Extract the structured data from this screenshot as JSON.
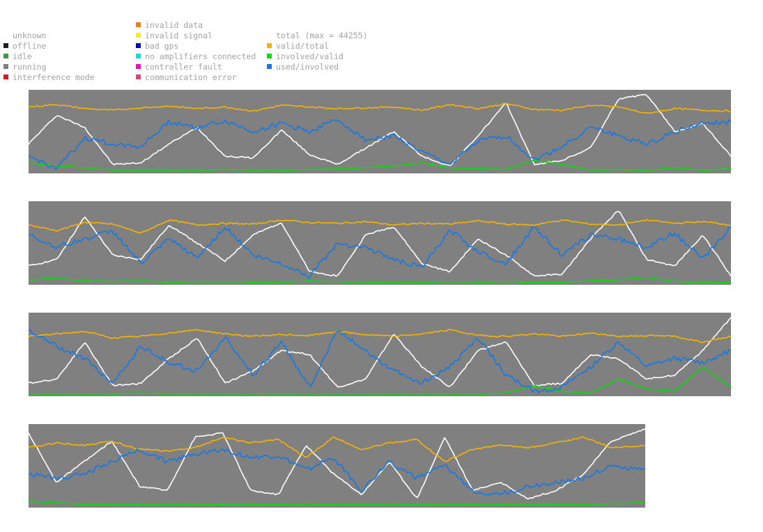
{
  "legend": {
    "states": [
      {
        "label": "unknown",
        "color": "#ffffff"
      },
      {
        "label": "offline",
        "color": "#202020"
      },
      {
        "label": "idle",
        "color": "#3c9b3c"
      },
      {
        "label": "running",
        "color": "#808080"
      },
      {
        "label": "interference mode",
        "color": "#e8101a"
      }
    ],
    "errors": [
      {
        "label": "invalid data",
        "color": "#ff7a00"
      },
      {
        "label": "invalid signal",
        "color": "#ffee00"
      },
      {
        "label": "bad gps",
        "color": "#0000e0"
      },
      {
        "label": "no amplifiers connected",
        "color": "#00e5e5"
      },
      {
        "label": "controller fault",
        "color": "#ff00d0"
      },
      {
        "label": "communication error",
        "color": "#ee3a78"
      }
    ],
    "metrics": [
      {
        "label": "total (max = 44255)",
        "color": "#ffffff"
      },
      {
        "label": "valid/total",
        "color": "#f5b400"
      },
      {
        "label": "involved/valid",
        "color": "#00e000"
      },
      {
        "label": "used/involved",
        "color": "#1478e6"
      }
    ]
  },
  "chart_data": {
    "type": "line",
    "background_state_color": "#808080",
    "ylim": [
      0,
      1
    ],
    "series_order": [
      "total (max = 44255)",
      "valid/total",
      "involved/valid",
      "used/involved"
    ],
    "series_colors": [
      "#ffffff",
      "#f5b400",
      "#00e000",
      "#1478e6"
    ],
    "panels": [
      {
        "x": [
          0,
          0.04,
          0.08,
          0.12,
          0.16,
          0.2,
          0.24,
          0.28,
          0.32,
          0.36,
          0.4,
          0.44,
          0.48,
          0.52,
          0.56,
          0.6,
          0.64,
          0.68,
          0.72,
          0.76,
          0.8,
          0.84,
          0.88,
          0.92,
          0.96,
          1.0
        ],
        "series": [
          {
            "name": "total (max = 44255)",
            "values": [
              0.35,
              0.7,
              0.55,
              0.1,
              0.12,
              0.35,
              0.55,
              0.2,
              0.18,
              0.52,
              0.22,
              0.1,
              0.3,
              0.5,
              0.2,
              0.08,
              0.45,
              0.85,
              0.1,
              0.15,
              0.3,
              0.9,
              0.95,
              0.5,
              0.6,
              0.2
            ]
          },
          {
            "name": "valid/total",
            "values": [
              0.8,
              0.83,
              0.78,
              0.76,
              0.79,
              0.81,
              0.78,
              0.8,
              0.75,
              0.82,
              0.8,
              0.78,
              0.79,
              0.8,
              0.76,
              0.83,
              0.78,
              0.84,
              0.77,
              0.76,
              0.82,
              0.8,
              0.72,
              0.78,
              0.76,
              0.75
            ]
          },
          {
            "name": "involved/valid",
            "values": [
              0.12,
              0.08,
              0.06,
              0.03,
              0.03,
              0.03,
              0.03,
              0.04,
              0.03,
              0.03,
              0.04,
              0.05,
              0.06,
              0.08,
              0.12,
              0.06,
              0.05,
              0.04,
              0.15,
              0.1,
              0.03,
              0.04,
              0.03,
              0.06,
              0.03,
              0.05
            ]
          },
          {
            "name": "used/involved",
            "values": [
              0.2,
              0.05,
              0.42,
              0.35,
              0.32,
              0.62,
              0.55,
              0.63,
              0.5,
              0.6,
              0.5,
              0.65,
              0.4,
              0.45,
              0.25,
              0.1,
              0.38,
              0.45,
              0.15,
              0.32,
              0.55,
              0.45,
              0.35,
              0.5,
              0.6,
              0.62
            ]
          }
        ]
      },
      {
        "x": [
          0,
          0.04,
          0.08,
          0.12,
          0.16,
          0.2,
          0.24,
          0.28,
          0.32,
          0.36,
          0.4,
          0.44,
          0.48,
          0.52,
          0.56,
          0.6,
          0.64,
          0.68,
          0.72,
          0.76,
          0.8,
          0.84,
          0.88,
          0.92,
          0.96,
          1.0
        ],
        "series": [
          {
            "name": "total (max = 44255)",
            "values": [
              0.22,
              0.3,
              0.82,
              0.35,
              0.3,
              0.72,
              0.5,
              0.28,
              0.6,
              0.75,
              0.15,
              0.1,
              0.6,
              0.7,
              0.25,
              0.15,
              0.55,
              0.35,
              0.1,
              0.12,
              0.55,
              0.9,
              0.3,
              0.22,
              0.6,
              0.1
            ]
          },
          {
            "name": "valid/total",
            "values": [
              0.72,
              0.65,
              0.75,
              0.73,
              0.62,
              0.78,
              0.72,
              0.74,
              0.73,
              0.78,
              0.75,
              0.74,
              0.76,
              0.72,
              0.74,
              0.73,
              0.77,
              0.73,
              0.72,
              0.78,
              0.73,
              0.72,
              0.78,
              0.74,
              0.76,
              0.72
            ]
          },
          {
            "name": "involved/valid",
            "values": [
              0.05,
              0.07,
              0.04,
              0.03,
              0.04,
              0.02,
              0.03,
              0.03,
              0.02,
              0.02,
              0.04,
              0.03,
              0.02,
              0.02,
              0.02,
              0.03,
              0.02,
              0.03,
              0.02,
              0.02,
              0.04,
              0.05,
              0.08,
              0.03,
              0.02,
              0.02
            ]
          },
          {
            "name": "used/involved",
            "values": [
              0.6,
              0.45,
              0.55,
              0.65,
              0.25,
              0.55,
              0.32,
              0.7,
              0.35,
              0.25,
              0.1,
              0.5,
              0.45,
              0.3,
              0.2,
              0.65,
              0.4,
              0.25,
              0.7,
              0.35,
              0.6,
              0.55,
              0.45,
              0.62,
              0.3,
              0.7
            ]
          }
        ]
      },
      {
        "x": [
          0,
          0.04,
          0.08,
          0.12,
          0.16,
          0.2,
          0.24,
          0.28,
          0.32,
          0.36,
          0.4,
          0.44,
          0.48,
          0.52,
          0.56,
          0.6,
          0.64,
          0.68,
          0.72,
          0.76,
          0.8,
          0.84,
          0.88,
          0.92,
          0.96,
          1.0
        ],
        "series": [
          {
            "name": "total (max = 44255)",
            "values": [
              0.15,
              0.2,
              0.65,
              0.12,
              0.15,
              0.45,
              0.7,
              0.15,
              0.3,
              0.55,
              0.5,
              0.1,
              0.2,
              0.75,
              0.35,
              0.1,
              0.55,
              0.65,
              0.12,
              0.15,
              0.5,
              0.45,
              0.2,
              0.25,
              0.55,
              0.95
            ]
          },
          {
            "name": "valid/total",
            "values": [
              0.72,
              0.75,
              0.78,
              0.7,
              0.72,
              0.76,
              0.8,
              0.75,
              0.72,
              0.74,
              0.73,
              0.78,
              0.74,
              0.72,
              0.75,
              0.8,
              0.73,
              0.72,
              0.75,
              0.72,
              0.76,
              0.72,
              0.73,
              0.72,
              0.65,
              0.72
            ]
          },
          {
            "name": "involved/valid",
            "values": [
              0.02,
              0.02,
              0.02,
              0.02,
              0.03,
              0.02,
              0.02,
              0.02,
              0.02,
              0.02,
              0.02,
              0.02,
              0.02,
              0.02,
              0.02,
              0.02,
              0.02,
              0.03,
              0.12,
              0.05,
              0.03,
              0.2,
              0.08,
              0.05,
              0.35,
              0.1
            ]
          },
          {
            "name": "used/involved",
            "values": [
              0.8,
              0.6,
              0.45,
              0.15,
              0.6,
              0.4,
              0.3,
              0.7,
              0.25,
              0.65,
              0.1,
              0.8,
              0.55,
              0.3,
              0.15,
              0.35,
              0.7,
              0.25,
              0.05,
              0.1,
              0.35,
              0.65,
              0.35,
              0.45,
              0.4,
              0.55
            ]
          }
        ]
      },
      {
        "x": [
          0,
          0.045,
          0.09,
          0.135,
          0.18,
          0.225,
          0.27,
          0.315,
          0.36,
          0.405,
          0.45,
          0.495,
          0.54,
          0.585,
          0.63,
          0.675,
          0.72,
          0.765,
          0.81,
          0.855,
          0.9,
          0.945,
          1.0
        ],
        "series": [
          {
            "name": "total (max = 44255)",
            "values": [
              0.9,
              0.3,
              0.55,
              0.8,
              0.25,
              0.2,
              0.85,
              0.9,
              0.2,
              0.15,
              0.75,
              0.4,
              0.15,
              0.55,
              0.1,
              0.85,
              0.2,
              0.3,
              0.1,
              0.2,
              0.4,
              0.8,
              0.95
            ]
          },
          {
            "name": "valid/total",
            "values": [
              0.72,
              0.78,
              0.75,
              0.8,
              0.7,
              0.68,
              0.72,
              0.85,
              0.78,
              0.82,
              0.6,
              0.85,
              0.7,
              0.78,
              0.82,
              0.55,
              0.7,
              0.75,
              0.72,
              0.78,
              0.85,
              0.72,
              0.75
            ]
          },
          {
            "name": "involved/valid",
            "values": [
              0.07,
              0.05,
              0.03,
              0.03,
              0.03,
              0.03,
              0.03,
              0.03,
              0.03,
              0.03,
              0.03,
              0.03,
              0.03,
              0.03,
              0.03,
              0.03,
              0.03,
              0.03,
              0.03,
              0.03,
              0.03,
              0.04,
              0.05
            ]
          },
          {
            "name": "used/involved",
            "values": [
              0.4,
              0.35,
              0.4,
              0.55,
              0.7,
              0.55,
              0.65,
              0.7,
              0.6,
              0.62,
              0.45,
              0.6,
              0.2,
              0.55,
              0.35,
              0.5,
              0.2,
              0.15,
              0.25,
              0.3,
              0.35,
              0.5,
              0.45
            ]
          }
        ]
      }
    ]
  }
}
